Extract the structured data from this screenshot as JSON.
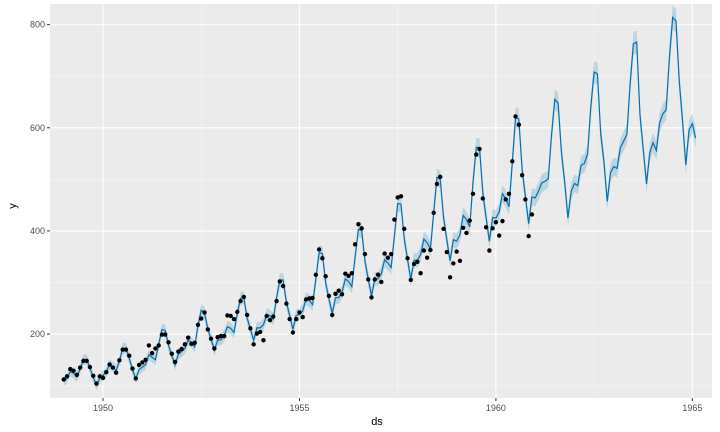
{
  "chart_data": {
    "type": "line",
    "title": "",
    "xlabel": "ds",
    "ylabel": "y",
    "xlim": [
      1948.65,
      1965.5
    ],
    "ylim": [
      76,
      840
    ],
    "x_ticks": [
      {
        "value": 1950,
        "label": "1950"
      },
      {
        "value": 1955,
        "label": "1955"
      },
      {
        "value": 1960,
        "label": "1960"
      },
      {
        "value": 1965,
        "label": "1965"
      }
    ],
    "y_ticks": [
      {
        "value": 200,
        "label": "200"
      },
      {
        "value": 400,
        "label": "400"
      },
      {
        "value": 600,
        "label": "600"
      },
      {
        "value": 800,
        "label": "800"
      }
    ],
    "grid": true,
    "colors": {
      "panel": "#ebebeb",
      "grid_major": "#ffffff",
      "forecast_line": "#0072b2",
      "interval_band": "#0072b2",
      "points": "#000000"
    },
    "series": [
      {
        "role": "observed",
        "points": true,
        "start": [
          1949,
          1
        ],
        "frequency": "monthly",
        "values": [
          112,
          118,
          132,
          129,
          121,
          135,
          148,
          148,
          136,
          119,
          104,
          118,
          115,
          126,
          141,
          135,
          125,
          149,
          170,
          170,
          158,
          133,
          114,
          140,
          145,
          150,
          178,
          163,
          172,
          178,
          199,
          199,
          184,
          162,
          146,
          166,
          171,
          180,
          193,
          181,
          183,
          218,
          230,
          242,
          209,
          191,
          172,
          194,
          196,
          196,
          236,
          235,
          229,
          243,
          264,
          272,
          237,
          211,
          180,
          201,
          204,
          188,
          235,
          227,
          234,
          264,
          302,
          293,
          259,
          229,
          203,
          229,
          242,
          233,
          267,
          269,
          270,
          315,
          364,
          347,
          312,
          274,
          237,
          278,
          284,
          277,
          317,
          313,
          318,
          374,
          413,
          405,
          355,
          306,
          271,
          306,
          315,
          301,
          356,
          348,
          355,
          422,
          465,
          467,
          404,
          347,
          305,
          336,
          340,
          318,
          362,
          348,
          363,
          435,
          491,
          505,
          404,
          359,
          310,
          337,
          360,
          342,
          406,
          396,
          420,
          472,
          548,
          559,
          463,
          407,
          362,
          405,
          417,
          391,
          419,
          461,
          472,
          535,
          622,
          606,
          508,
          461,
          390,
          432
        ]
      },
      {
        "role": "forecast",
        "line": true,
        "start": [
          1949,
          1
        ],
        "frequency": "monthly",
        "interval_halfwidth": 12,
        "values": [
          108,
          114,
          127,
          124,
          117,
          132,
          150,
          151,
          134,
          116,
          101,
          114,
          120,
          126,
          141,
          137,
          129,
          148,
          172,
          173,
          153,
          131,
          113,
          131,
          136,
          141,
          160,
          155,
          150,
          180,
          209,
          207,
          178,
          158,
          140,
          161,
          166,
          172,
          188,
          184,
          175,
          217,
          246,
          241,
          210,
          190,
          169,
          188,
          189,
          197,
          214,
          211,
          203,
          240,
          269,
          271,
          231,
          210,
          188,
          212,
          212,
          218,
          238,
          235,
          229,
          270,
          304,
          305,
          262,
          236,
          209,
          236,
          238,
          245,
          269,
          265,
          257,
          307,
          358,
          356,
          299,
          268,
          240,
          270,
          271,
          281,
          307,
          302,
          292,
          350,
          403,
          401,
          341,
          307,
          274,
          307,
          307,
          317,
          344,
          338,
          329,
          390,
          453,
          452,
          385,
          345,
          306,
          343,
          343,
          354,
          384,
          377,
          365,
          436,
          504,
          500,
          426,
          383,
          342,
          383,
          380,
          392,
          430,
          422,
          408,
          494,
          562,
          561,
          474,
          426,
          380,
          426,
          425,
          437,
          472,
          462,
          447,
          532,
          620,
          617,
          519,
          467,
          414,
          466,
          464,
          477,
          493,
          496,
          501,
          587,
          655,
          648,
          553,
          495,
          425,
          477,
          492,
          488,
          527,
          531,
          549,
          642,
          708,
          705,
          589,
          534,
          457,
          513,
          525,
          521,
          561,
          574,
          587,
          686,
          763,
          766,
          625,
          558,
          491,
          552,
          571,
          556,
          610,
          627,
          635,
          737,
          814,
          807,
          690,
          614,
          528,
          596,
          608,
          580
        ]
      }
    ]
  }
}
